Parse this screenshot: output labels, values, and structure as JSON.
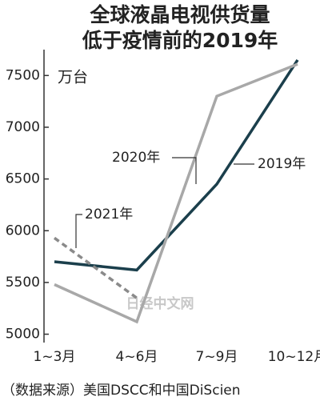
{
  "chart_data": {
    "type": "line",
    "title": [
      "全球液晶电视供货量",
      "低于疫情前的2019年"
    ],
    "unit": "万台",
    "categories": [
      "1~3月",
      "4~6月",
      "7~9月",
      "10~12月"
    ],
    "series": [
      {
        "name": "2019年",
        "color": "#1b3f4c",
        "dashed": false,
        "values": [
          5700,
          5620,
          6450,
          7650
        ]
      },
      {
        "name": "2020年",
        "color": "#a8a8a8",
        "dashed": false,
        "values": [
          5480,
          5120,
          7300,
          7610
        ]
      },
      {
        "name": "2021年",
        "color": "#8a8a8a",
        "dashed": true,
        "values": [
          5930,
          5350,
          null,
          null
        ]
      }
    ],
    "ylim": [
      4950,
      7750
    ],
    "yticks": [
      5000,
      5500,
      6000,
      6500,
      7000,
      7500
    ],
    "watermark": "日经中文网",
    "source": "（数据来源）美国DSCC和中国DiScien"
  }
}
